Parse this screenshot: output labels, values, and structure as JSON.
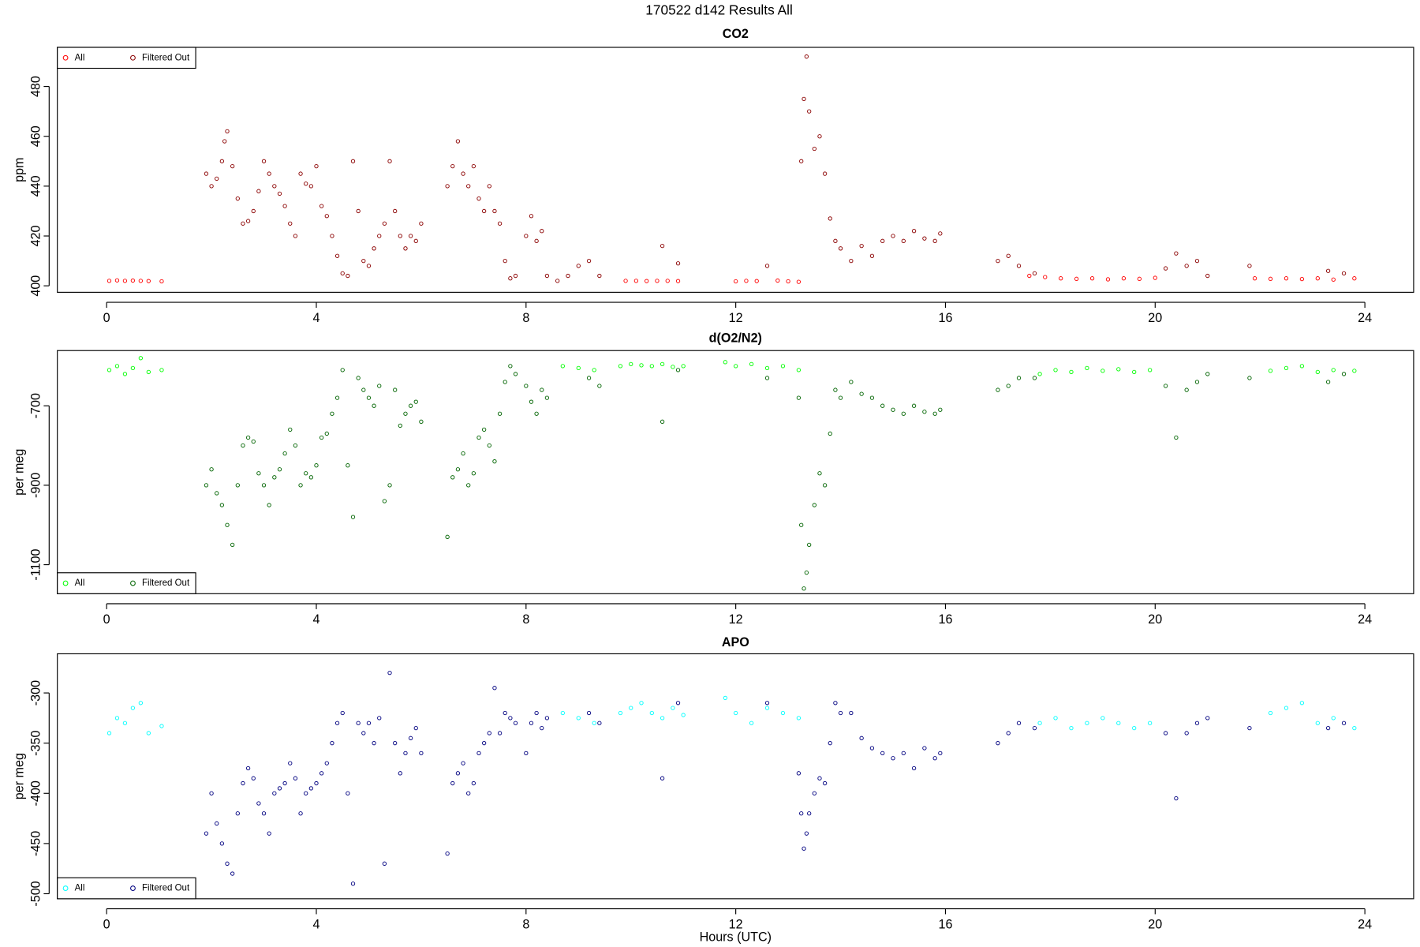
{
  "title": "170522   d142   Results All",
  "chart_data": [
    {
      "type": "scatter",
      "title": "CO2",
      "ylabel": "ppm",
      "legend": "top-left",
      "xlim": [
        -0.94,
        24.93
      ],
      "xticks": [
        0,
        4,
        8,
        12,
        16,
        20,
        24
      ],
      "ylim": [
        397.4,
        495.7
      ],
      "yticks": [
        400,
        420,
        440,
        460,
        480
      ],
      "series": [
        {
          "name": "All",
          "color": "#ff0000",
          "x": [
            0.05,
            0.2,
            0.35,
            0.5,
            0.65,
            0.8,
            1.05,
            9.9,
            10.1,
            10.3,
            10.5,
            10.7,
            10.9,
            12.0,
            12.2,
            12.4,
            12.8,
            13.0,
            13.2,
            17.6,
            17.9,
            18.2,
            18.5,
            18.8,
            19.1,
            19.4,
            19.7,
            20.0,
            21.9,
            22.2,
            22.5,
            22.8,
            23.1,
            23.4,
            23.8
          ],
          "values": [
            402,
            402.2,
            402,
            402.1,
            402,
            401.9,
            401.8,
            402,
            402,
            401.9,
            402,
            402,
            401.9,
            401.8,
            402,
            401.9,
            402.1,
            401.8,
            401.6,
            404,
            403.5,
            403,
            402.8,
            403,
            402.6,
            403,
            402.8,
            403.2,
            403,
            402.8,
            403,
            402.7,
            403,
            402.5,
            403
          ]
        },
        {
          "name": "Filtered Out",
          "color": "#8b0000",
          "x": [
            1.9,
            2.0,
            2.1,
            2.2,
            2.25,
            2.3,
            2.4,
            2.5,
            2.6,
            2.7,
            2.8,
            2.9,
            3.0,
            3.1,
            3.2,
            3.3,
            3.4,
            3.5,
            3.6,
            3.7,
            3.8,
            3.9,
            4.0,
            4.1,
            4.2,
            4.3,
            4.4,
            4.5,
            4.6,
            4.7,
            4.8,
            4.9,
            5.0,
            5.1,
            5.2,
            5.3,
            5.4,
            5.5,
            5.6,
            5.7,
            5.8,
            5.9,
            6.0,
            6.5,
            6.6,
            6.7,
            6.8,
            6.9,
            7.0,
            7.1,
            7.2,
            7.3,
            7.4,
            7.5,
            7.6,
            7.7,
            7.8,
            8.0,
            8.1,
            8.2,
            8.3,
            8.4,
            8.6,
            8.8,
            9.0,
            9.2,
            9.4,
            10.6,
            10.9,
            12.6,
            13.25,
            13.3,
            13.35,
            13.4,
            13.5,
            13.6,
            13.7,
            13.8,
            13.9,
            14.0,
            14.2,
            14.4,
            14.6,
            14.8,
            15.0,
            15.2,
            15.4,
            15.6,
            15.8,
            15.9,
            17.0,
            17.2,
            17.4,
            17.7,
            20.2,
            20.4,
            20.6,
            20.8,
            21.0,
            21.8,
            23.3,
            23.6
          ],
          "values": [
            445,
            440,
            443,
            450,
            458,
            462,
            448,
            435,
            425,
            426,
            430,
            438,
            450,
            445,
            440,
            437,
            432,
            425,
            420,
            445,
            441,
            440,
            448,
            432,
            428,
            420,
            412,
            405,
            404,
            450,
            430,
            410,
            408,
            415,
            420,
            425,
            450,
            430,
            420,
            415,
            420,
            418,
            425,
            440,
            448,
            458,
            445,
            440,
            448,
            435,
            430,
            440,
            430,
            425,
            410,
            403,
            404,
            420,
            428,
            418,
            422,
            404,
            402,
            404,
            408,
            410,
            404,
            416,
            409,
            408,
            450,
            475,
            492,
            470,
            455,
            460,
            445,
            427,
            418,
            415,
            410,
            416,
            412,
            418,
            420,
            418,
            422,
            419,
            418,
            421,
            410,
            412,
            408,
            405,
            407,
            413,
            408,
            410,
            404,
            408,
            406,
            405
          ]
        }
      ]
    },
    {
      "type": "scatter",
      "title": "d(O2/N2)",
      "ylabel": "per meg",
      "legend": "bottom-left",
      "xlim": [
        -0.94,
        24.93
      ],
      "xticks": [
        0,
        4,
        8,
        12,
        16,
        20,
        24
      ],
      "ylim": [
        -1173,
        -561
      ],
      "yticks": [
        -1100,
        -900,
        -700
      ],
      "series": [
        {
          "name": "All",
          "color": "#00ff00",
          "x": [
            0.05,
            0.2,
            0.35,
            0.5,
            0.65,
            0.8,
            1.05,
            8.7,
            9.0,
            9.3,
            9.8,
            10.0,
            10.2,
            10.4,
            10.6,
            10.8,
            11.0,
            11.8,
            12.0,
            12.3,
            12.6,
            12.9,
            13.2,
            17.8,
            18.1,
            18.4,
            18.7,
            19.0,
            19.3,
            19.6,
            19.9,
            22.2,
            22.5,
            22.8,
            23.1,
            23.4,
            23.8
          ],
          "values": [
            -610,
            -600,
            -620,
            -605,
            -580,
            -615,
            -610,
            -600,
            -605,
            -610,
            -600,
            -595,
            -598,
            -600,
            -595,
            -602,
            -600,
            -590,
            -600,
            -595,
            -605,
            -600,
            -610,
            -620,
            -610,
            -615,
            -605,
            -612,
            -608,
            -615,
            -610,
            -612,
            -605,
            -600,
            -615,
            -610,
            -612
          ]
        },
        {
          "name": "Filtered Out",
          "color": "#006400",
          "x": [
            1.9,
            2.0,
            2.1,
            2.2,
            2.3,
            2.4,
            2.5,
            2.6,
            2.7,
            2.8,
            2.9,
            3.0,
            3.1,
            3.2,
            3.3,
            3.4,
            3.5,
            3.6,
            3.7,
            3.8,
            3.9,
            4.0,
            4.1,
            4.2,
            4.3,
            4.4,
            4.5,
            4.6,
            4.7,
            4.8,
            4.9,
            5.0,
            5.1,
            5.2,
            5.3,
            5.4,
            5.5,
            5.6,
            5.7,
            5.8,
            5.9,
            6.0,
            6.5,
            6.6,
            6.7,
            6.8,
            6.9,
            7.0,
            7.1,
            7.2,
            7.3,
            7.4,
            7.5,
            7.6,
            7.7,
            7.8,
            8.0,
            8.1,
            8.2,
            8.3,
            8.4,
            9.2,
            9.4,
            10.6,
            10.9,
            12.6,
            13.2,
            13.25,
            13.3,
            13.35,
            13.4,
            13.5,
            13.6,
            13.7,
            13.8,
            13.9,
            14.0,
            14.2,
            14.4,
            14.6,
            14.8,
            15.0,
            15.2,
            15.4,
            15.6,
            15.8,
            15.9,
            17.0,
            17.2,
            17.4,
            17.7,
            20.2,
            20.4,
            20.6,
            20.8,
            21.0,
            21.8,
            23.3,
            23.6
          ],
          "values": [
            -900,
            -860,
            -920,
            -950,
            -1000,
            -1050,
            -900,
            -800,
            -780,
            -790,
            -870,
            -900,
            -950,
            -880,
            -860,
            -820,
            -760,
            -800,
            -900,
            -870,
            -880,
            -850,
            -780,
            -770,
            -720,
            -680,
            -610,
            -850,
            -980,
            -630,
            -660,
            -680,
            -700,
            -650,
            -940,
            -900,
            -660,
            -750,
            -720,
            -700,
            -690,
            -740,
            -1030,
            -880,
            -860,
            -820,
            -900,
            -870,
            -780,
            -760,
            -800,
            -840,
            -720,
            -640,
            -600,
            -620,
            -650,
            -690,
            -720,
            -660,
            -680,
            -630,
            -650,
            -740,
            -610,
            -630,
            -680,
            -1000,
            -1160,
            -1120,
            -1050,
            -950,
            -870,
            -900,
            -770,
            -660,
            -680,
            -640,
            -670,
            -680,
            -700,
            -710,
            -720,
            -700,
            -715,
            -720,
            -710,
            -660,
            -650,
            -630,
            -630,
            -650,
            -780,
            -660,
            -640,
            -620,
            -630,
            -640,
            -620
          ]
        }
      ]
    },
    {
      "type": "scatter",
      "title": "APO",
      "ylabel": "per meg",
      "xlabel": "Hours (UTC)",
      "legend": "bottom-left",
      "xlim": [
        -0.94,
        24.93
      ],
      "xticks": [
        0,
        4,
        8,
        12,
        16,
        20,
        24
      ],
      "ylim": [
        -505,
        -261
      ],
      "yticks": [
        -500,
        -450,
        -400,
        -350,
        -300
      ],
      "series": [
        {
          "name": "All",
          "color": "#00ffff",
          "x": [
            0.05,
            0.2,
            0.35,
            0.5,
            0.65,
            0.8,
            1.05,
            8.7,
            9.0,
            9.3,
            9.8,
            10.0,
            10.2,
            10.4,
            10.6,
            10.8,
            11.0,
            11.8,
            12.0,
            12.3,
            12.6,
            12.9,
            13.2,
            17.8,
            18.1,
            18.4,
            18.7,
            19.0,
            19.3,
            19.6,
            19.9,
            22.2,
            22.5,
            22.8,
            23.1,
            23.4,
            23.8
          ],
          "values": [
            -340,
            -325,
            -330,
            -315,
            -310,
            -340,
            -333,
            -320,
            -325,
            -330,
            -320,
            -315,
            -310,
            -320,
            -325,
            -315,
            -322,
            -305,
            -320,
            -330,
            -315,
            -320,
            -325,
            -330,
            -325,
            -335,
            -330,
            -325,
            -330,
            -335,
            -330,
            -320,
            -315,
            -310,
            -330,
            -325,
            -335
          ]
        },
        {
          "name": "Filtered Out",
          "color": "#000080",
          "x": [
            1.9,
            2.0,
            2.1,
            2.2,
            2.3,
            2.4,
            2.5,
            2.6,
            2.7,
            2.8,
            2.9,
            3.0,
            3.1,
            3.2,
            3.3,
            3.4,
            3.5,
            3.6,
            3.7,
            3.8,
            3.9,
            4.0,
            4.1,
            4.2,
            4.3,
            4.4,
            4.5,
            4.6,
            4.7,
            4.8,
            4.9,
            5.0,
            5.1,
            5.2,
            5.3,
            5.4,
            5.5,
            5.6,
            5.7,
            5.8,
            5.9,
            6.0,
            6.5,
            6.6,
            6.7,
            6.8,
            6.9,
            7.0,
            7.1,
            7.2,
            7.3,
            7.4,
            7.5,
            7.6,
            7.7,
            7.8,
            8.0,
            8.1,
            8.2,
            8.3,
            8.4,
            9.2,
            9.4,
            10.6,
            10.9,
            12.6,
            13.2,
            13.25,
            13.3,
            13.35,
            13.4,
            13.5,
            13.6,
            13.7,
            13.8,
            13.9,
            14.0,
            14.2,
            14.4,
            14.6,
            14.8,
            15.0,
            15.2,
            15.4,
            15.6,
            15.8,
            15.9,
            17.0,
            17.2,
            17.4,
            17.7,
            20.2,
            20.4,
            20.6,
            20.8,
            21.0,
            21.8,
            23.3,
            23.6
          ],
          "values": [
            -440,
            -400,
            -430,
            -450,
            -470,
            -480,
            -420,
            -390,
            -375,
            -385,
            -410,
            -420,
            -440,
            -400,
            -395,
            -390,
            -370,
            -385,
            -420,
            -400,
            -395,
            -390,
            -380,
            -370,
            -350,
            -330,
            -320,
            -400,
            -490,
            -330,
            -340,
            -330,
            -350,
            -325,
            -470,
            -280,
            -350,
            -380,
            -360,
            -345,
            -335,
            -360,
            -460,
            -390,
            -380,
            -370,
            -400,
            -390,
            -360,
            -350,
            -340,
            -295,
            -340,
            -320,
            -325,
            -330,
            -360,
            -330,
            -320,
            -335,
            -325,
            -320,
            -330,
            -385,
            -310,
            -310,
            -380,
            -420,
            -455,
            -440,
            -420,
            -400,
            -385,
            -390,
            -350,
            -310,
            -320,
            -320,
            -345,
            -355,
            -360,
            -365,
            -360,
            -375,
            -355,
            -365,
            -360,
            -350,
            -340,
            -330,
            -335,
            -340,
            -405,
            -340,
            -330,
            -325,
            -335,
            -335,
            -330
          ]
        }
      ]
    }
  ]
}
